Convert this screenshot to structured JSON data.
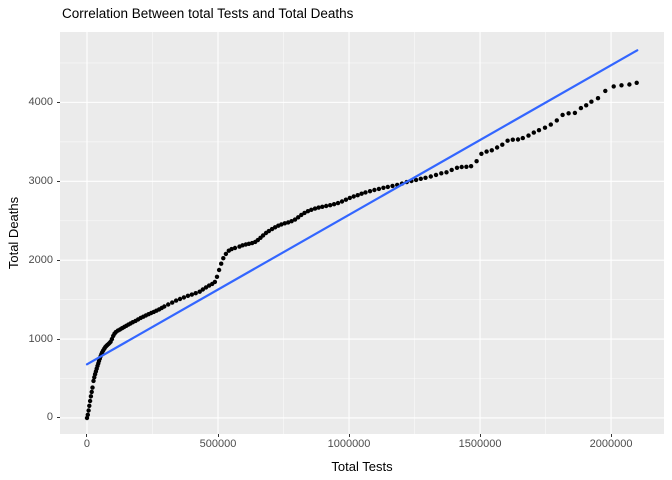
{
  "chart_data": {
    "type": "scatter",
    "title": "Correlation Between total Tests and Total Deaths",
    "xlabel": "Total Tests",
    "ylabel": "Total Deaths",
    "legend": "none",
    "grid": true,
    "panel_bg": "#EBEBEB",
    "grid_major_color": "#FFFFFF",
    "grid_minor_color": "#FFFFFF",
    "point_color": "#000000",
    "point_radius": 2.2,
    "xlim": [
      -103000,
      2202000
    ],
    "ylim": [
      -203,
      4892
    ],
    "x_ticks": {
      "values": [
        0,
        500000,
        1000000,
        1500000,
        2000000
      ],
      "labels": [
        "0",
        "500000",
        "1000000",
        "1500000",
        "2000000"
      ]
    },
    "x_minor": [
      250000,
      750000,
      1250000,
      1750000
    ],
    "y_ticks": {
      "values": [
        0,
        1000,
        2000,
        3000,
        4000
      ],
      "labels": [
        "0",
        "1000",
        "2000",
        "3000",
        "4000"
      ]
    },
    "y_minor": [
      500,
      1500,
      2500,
      3500,
      4500
    ],
    "trend_line": {
      "x1": 0,
      "y1": 680,
      "x2": 2100000,
      "y2": 4660,
      "color": "#3366FF",
      "width": 2.2
    },
    "points": [
      [
        0,
        0
      ],
      [
        3000,
        40
      ],
      [
        6000,
        95
      ],
      [
        9000,
        155
      ],
      [
        12000,
        215
      ],
      [
        15000,
        275
      ],
      [
        18000,
        330
      ],
      [
        21000,
        385
      ],
      [
        25000,
        470
      ],
      [
        28000,
        515
      ],
      [
        31000,
        555
      ],
      [
        34000,
        590
      ],
      [
        37000,
        625
      ],
      [
        40000,
        660
      ],
      [
        43000,
        692
      ],
      [
        46000,
        722
      ],
      [
        49000,
        752
      ],
      [
        52000,
        782
      ],
      [
        55000,
        808
      ],
      [
        58000,
        832
      ],
      [
        62000,
        856
      ],
      [
        66000,
        878
      ],
      [
        70000,
        898
      ],
      [
        74000,
        913
      ],
      [
        78000,
        926
      ],
      [
        82000,
        938
      ],
      [
        86000,
        950
      ],
      [
        90000,
        965
      ],
      [
        95000,
        1000
      ],
      [
        100000,
        1040
      ],
      [
        105000,
        1068
      ],
      [
        110000,
        1088
      ],
      [
        118000,
        1108
      ],
      [
        126000,
        1122
      ],
      [
        134000,
        1138
      ],
      [
        142000,
        1153
      ],
      [
        150000,
        1168
      ],
      [
        158000,
        1183
      ],
      [
        166000,
        1198
      ],
      [
        175000,
        1214
      ],
      [
        185000,
        1230
      ],
      [
        195000,
        1250
      ],
      [
        205000,
        1268
      ],
      [
        215000,
        1284
      ],
      [
        225000,
        1300
      ],
      [
        235000,
        1315
      ],
      [
        245000,
        1330
      ],
      [
        255000,
        1345
      ],
      [
        265000,
        1360
      ],
      [
        275000,
        1376
      ],
      [
        285000,
        1394
      ],
      [
        295000,
        1413
      ],
      [
        310000,
        1438
      ],
      [
        325000,
        1462
      ],
      [
        340000,
        1488
      ],
      [
        355000,
        1508
      ],
      [
        370000,
        1528
      ],
      [
        385000,
        1548
      ],
      [
        400000,
        1564
      ],
      [
        415000,
        1582
      ],
      [
        430000,
        1600
      ],
      [
        442000,
        1628
      ],
      [
        454000,
        1655
      ],
      [
        466000,
        1678
      ],
      [
        478000,
        1700
      ],
      [
        488000,
        1725
      ],
      [
        496000,
        1790
      ],
      [
        504000,
        1875
      ],
      [
        512000,
        1955
      ],
      [
        520000,
        2025
      ],
      [
        530000,
        2080
      ],
      [
        541000,
        2120
      ],
      [
        552000,
        2140
      ],
      [
        565000,
        2155
      ],
      [
        582000,
        2172
      ],
      [
        594000,
        2188
      ],
      [
        606000,
        2199
      ],
      [
        618000,
        2207
      ],
      [
        630000,
        2217
      ],
      [
        642000,
        2232
      ],
      [
        652000,
        2254
      ],
      [
        662000,
        2284
      ],
      [
        672000,
        2314
      ],
      [
        683000,
        2344
      ],
      [
        694000,
        2369
      ],
      [
        706000,
        2394
      ],
      [
        718000,
        2417
      ],
      [
        730000,
        2437
      ],
      [
        742000,
        2454
      ],
      [
        755000,
        2467
      ],
      [
        768000,
        2479
      ],
      [
        781000,
        2494
      ],
      [
        794000,
        2514
      ],
      [
        806000,
        2544
      ],
      [
        818000,
        2574
      ],
      [
        830000,
        2599
      ],
      [
        843000,
        2621
      ],
      [
        856000,
        2639
      ],
      [
        870000,
        2654
      ],
      [
        884000,
        2667
      ],
      [
        898000,
        2677
      ],
      [
        913000,
        2687
      ],
      [
        928000,
        2697
      ],
      [
        943000,
        2709
      ],
      [
        958000,
        2724
      ],
      [
        973000,
        2744
      ],
      [
        988000,
        2767
      ],
      [
        1003000,
        2789
      ],
      [
        1018000,
        2807
      ],
      [
        1033000,
        2824
      ],
      [
        1048000,
        2842
      ],
      [
        1063000,
        2859
      ],
      [
        1080000,
        2874
      ],
      [
        1097000,
        2889
      ],
      [
        1114000,
        2904
      ],
      [
        1131000,
        2917
      ],
      [
        1148000,
        2929
      ],
      [
        1166000,
        2941
      ],
      [
        1184000,
        2954
      ],
      [
        1202000,
        2971
      ],
      [
        1220000,
        2989
      ],
      [
        1238000,
        3004
      ],
      [
        1256000,
        3017
      ],
      [
        1274000,
        3031
      ],
      [
        1292000,
        3044
      ],
      [
        1312000,
        3061
      ],
      [
        1332000,
        3081
      ],
      [
        1352000,
        3101
      ],
      [
        1372000,
        3114
      ],
      [
        1392000,
        3144
      ],
      [
        1412000,
        3171
      ],
      [
        1430000,
        3181
      ],
      [
        1448000,
        3184
      ],
      [
        1466000,
        3191
      ],
      [
        1487000,
        3254
      ],
      [
        1505000,
        3348
      ],
      [
        1525000,
        3376
      ],
      [
        1545000,
        3393
      ],
      [
        1565000,
        3428
      ],
      [
        1585000,
        3463
      ],
      [
        1605000,
        3514
      ],
      [
        1625000,
        3527
      ],
      [
        1645000,
        3529
      ],
      [
        1663000,
        3547
      ],
      [
        1685000,
        3579
      ],
      [
        1705000,
        3617
      ],
      [
        1725000,
        3647
      ],
      [
        1748000,
        3679
      ],
      [
        1770000,
        3719
      ],
      [
        1793000,
        3772
      ],
      [
        1815000,
        3841
      ],
      [
        1838000,
        3861
      ],
      [
        1862000,
        3867
      ],
      [
        1885000,
        3928
      ],
      [
        1905000,
        3963
      ],
      [
        1925000,
        4008
      ],
      [
        1950000,
        4053
      ],
      [
        1978000,
        4146
      ],
      [
        2010000,
        4203
      ],
      [
        2040000,
        4216
      ],
      [
        2070000,
        4226
      ],
      [
        2098000,
        4248
      ]
    ]
  }
}
